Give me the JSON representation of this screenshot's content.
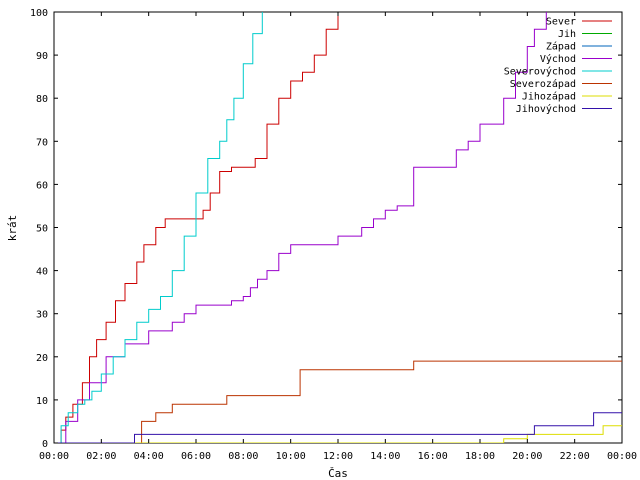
{
  "chart_data": {
    "type": "line",
    "step": true,
    "xlabel": "Čas",
    "ylabel": "krát",
    "xlim": [
      0,
      24
    ],
    "ylim": [
      0,
      100
    ],
    "x_ticks": [
      "00:00",
      "02:00",
      "04:00",
      "06:00",
      "08:00",
      "10:00",
      "12:00",
      "14:00",
      "16:00",
      "18:00",
      "20:00",
      "22:00",
      "00:00"
    ],
    "y_ticks": [
      0,
      10,
      20,
      30,
      40,
      50,
      60,
      70,
      80,
      90,
      100
    ],
    "grid": false,
    "legend_position": "top-right",
    "series": [
      {
        "name": "Sever",
        "color": "#cc0000",
        "x": [
          0,
          0.3,
          0.5,
          0.8,
          1.2,
          1.5,
          1.8,
          2.2,
          2.6,
          3.0,
          3.5,
          3.8,
          4.3,
          4.7,
          5.0,
          5.5,
          6.0,
          6.3,
          6.6,
          7.0,
          7.5,
          8.0,
          8.5,
          9.0,
          9.5,
          10.0,
          10.5,
          11.0,
          11.5,
          12.0
        ],
        "values": [
          0,
          3,
          6,
          9,
          14,
          20,
          24,
          28,
          33,
          37,
          42,
          46,
          50,
          52,
          52,
          52,
          52,
          54,
          58,
          63,
          64,
          64,
          66,
          74,
          80,
          84,
          86,
          90,
          96,
          100
        ]
      },
      {
        "name": "Jih",
        "color": "#00aa00",
        "x": [
          0
        ],
        "values": [
          0
        ]
      },
      {
        "name": "Západ",
        "color": "#0066bb",
        "x": [
          0
        ],
        "values": [
          0
        ]
      },
      {
        "name": "Východ",
        "color": "#9900cc",
        "x": [
          0,
          0.5,
          1.0,
          1.5,
          2.2,
          3.0,
          4.0,
          5.0,
          5.5,
          6.0,
          7.0,
          7.5,
          8.0,
          8.3,
          8.6,
          9.0,
          9.5,
          10.0,
          11.0,
          12.0,
          12.5,
          13.0,
          13.5,
          14.0,
          14.5,
          15.0,
          15.2,
          16.0,
          16.5,
          17.0,
          17.5,
          18.0,
          18.5,
          19.0,
          19.5,
          20.0,
          20.3,
          20.8
        ],
        "values": [
          0,
          5,
          10,
          14,
          20,
          23,
          26,
          28,
          30,
          32,
          32,
          33,
          34,
          36,
          38,
          40,
          44,
          46,
          46,
          48,
          48,
          50,
          52,
          54,
          55,
          55,
          64,
          64,
          64,
          68,
          70,
          74,
          74,
          80,
          86,
          92,
          96,
          100
        ]
      },
      {
        "name": "Severovýchod",
        "color": "#00cccc",
        "x": [
          0,
          0.3,
          0.6,
          1.0,
          1.3,
          1.6,
          2.0,
          2.5,
          3.0,
          3.5,
          4.0,
          4.5,
          5.0,
          5.5,
          6.0,
          6.5,
          7.0,
          7.3,
          7.6,
          8.0,
          8.4,
          8.8
        ],
        "values": [
          0,
          4,
          7,
          9,
          10,
          12,
          16,
          20,
          24,
          28,
          31,
          34,
          40,
          48,
          58,
          66,
          70,
          75,
          80,
          88,
          95,
          100
        ]
      },
      {
        "name": "Severozápad",
        "color": "#bb3300",
        "x": [
          0,
          3.7,
          4.3,
          5.0,
          7.3,
          10.4,
          15.2,
          24
        ],
        "values": [
          0,
          5,
          7,
          9,
          11,
          17,
          19,
          19
        ]
      },
      {
        "name": "Jihozápad",
        "color": "#dddd00",
        "x": [
          0,
          19.0,
          20.0,
          23.2,
          24
        ],
        "values": [
          0,
          1,
          2,
          4,
          4
        ]
      },
      {
        "name": "Jihovýchod",
        "color": "#3311aa",
        "x": [
          0,
          3.4,
          19.8,
          20.3,
          22.8,
          24
        ],
        "values": [
          0,
          2,
          2,
          4,
          7,
          7
        ]
      }
    ]
  }
}
